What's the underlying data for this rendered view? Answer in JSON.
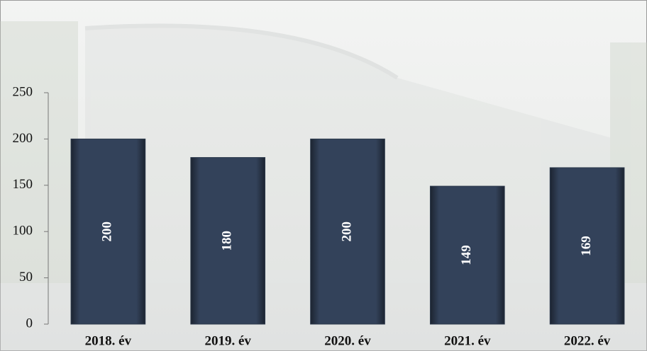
{
  "chart_data": {
    "type": "bar",
    "categories": [
      "2018. év",
      "2019. év",
      "2020. év",
      "2021. év",
      "2022. év"
    ],
    "values": [
      200,
      180,
      200,
      149,
      169
    ],
    "color": "#2d3a4c",
    "ylim": [
      0,
      250
    ],
    "yticks": [
      0,
      50,
      100,
      150,
      200,
      250
    ]
  }
}
